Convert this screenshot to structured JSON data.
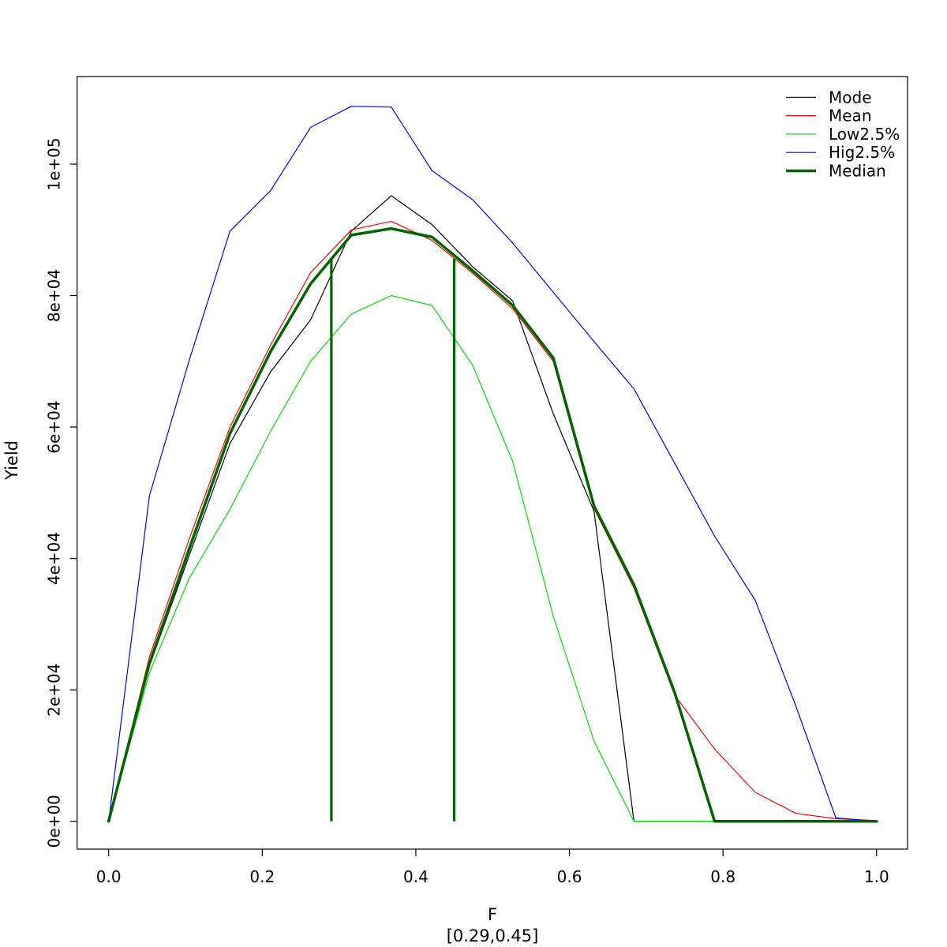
{
  "figure": {
    "title": "",
    "y_axis": {
      "label": "Yield",
      "ticks": [
        {
          "value": 0,
          "label": "0e+00"
        },
        {
          "value": 20000,
          "label": "2e+04"
        },
        {
          "value": 40000,
          "label": "4e+04"
        },
        {
          "value": 60000,
          "label": "6e+04"
        },
        {
          "value": 80000,
          "label": "8e+04"
        },
        {
          "value": 100000,
          "label": "1e+05"
        }
      ]
    },
    "x_axis": {
      "label": "F",
      "sublabel": "[0.29,0.45]",
      "ticks": [
        {
          "value": 0.0,
          "label": "0.0"
        },
        {
          "value": 0.2,
          "label": "0.2"
        },
        {
          "value": 0.4,
          "label": "0.4"
        },
        {
          "value": 0.6,
          "label": "0.6"
        },
        {
          "value": 0.8,
          "label": "0.8"
        },
        {
          "value": 1.0,
          "label": "1.0"
        }
      ]
    },
    "legend": {
      "position": "top-right",
      "entries": [
        {
          "label": "Mode",
          "color": "#000000",
          "width": 1.2
        },
        {
          "label": "Mean",
          "color": "#ff0000",
          "width": 1.2
        },
        {
          "label": "Low2.5%",
          "color": "#00e000",
          "width": 1.2
        },
        {
          "label": "Hig2.5%",
          "color": "#0000ff",
          "width": 1.2
        },
        {
          "label": "Median",
          "color": "#006400",
          "width": 3.5
        }
      ]
    }
  },
  "chart_data": {
    "type": "line",
    "title": "",
    "xlabel": "F",
    "xlabel_note": "[0.29,0.45]",
    "ylabel": "Yield",
    "xlim": [
      0,
      1
    ],
    "ylim": [
      0,
      108800
    ],
    "grid": false,
    "legend_position": "top-right",
    "x": [
      0,
      0.053,
      0.105,
      0.158,
      0.211,
      0.263,
      0.316,
      0.368,
      0.421,
      0.474,
      0.526,
      0.579,
      0.632,
      0.684,
      0.737,
      0.789,
      0.842,
      0.895,
      0.947,
      1.0
    ],
    "series": [
      {
        "name": "Mode",
        "color": "#000000",
        "width": 1.2,
        "values": [
          0,
          23600,
          40500,
          57500,
          68400,
          76300,
          89800,
          95200,
          90800,
          84400,
          79200,
          62000,
          47200,
          0,
          0,
          0,
          0,
          0,
          0,
          0
        ]
      },
      {
        "name": "Mean",
        "color": "#ff0000",
        "width": 1.2,
        "values": [
          0,
          25000,
          43000,
          60000,
          72500,
          83500,
          90000,
          91300,
          88400,
          83400,
          78000,
          70000,
          47600,
          35500,
          19200,
          11000,
          4400,
          1200,
          400,
          100
        ]
      },
      {
        "name": "Low2.5%",
        "color": "#00e000",
        "width": 1.2,
        "values": [
          0,
          22600,
          37000,
          47500,
          59400,
          70000,
          77200,
          80000,
          78500,
          69400,
          54800,
          31200,
          12200,
          0,
          0,
          0,
          0,
          0,
          0,
          0
        ]
      },
      {
        "name": "Hig2.5%",
        "color": "#0000ff",
        "width": 1.2,
        "values": [
          0,
          49500,
          70200,
          89800,
          96000,
          105600,
          108800,
          108700,
          99000,
          94600,
          88000,
          80500,
          73000,
          65800,
          54500,
          43400,
          33600,
          17500,
          500,
          0
        ]
      },
      {
        "name": "Median",
        "color": "#006400",
        "width": 3.5,
        "values": [
          0,
          24000,
          41500,
          59000,
          71500,
          81800,
          89200,
          90200,
          88900,
          83800,
          78500,
          70500,
          48000,
          36000,
          19600,
          0,
          0,
          0,
          0,
          0
        ]
      }
    ],
    "vlines": [
      {
        "x": 0.29,
        "top": 85700,
        "bottom": 0,
        "color": "#006400",
        "width": 3.2
      },
      {
        "x": 0.45,
        "top": 85600,
        "bottom": 0,
        "color": "#006400",
        "width": 3.2
      }
    ]
  }
}
